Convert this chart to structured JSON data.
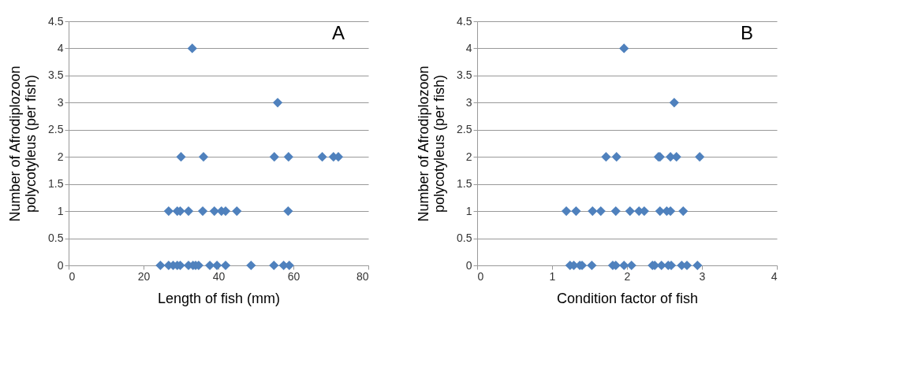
{
  "chart_data": [
    {
      "type": "scatter",
      "xlabel": "Length of fish (mm)",
      "ylabel": "Number of Afrodiplozoon polycotyleus (per fish)",
      "annotations": [
        "A"
      ],
      "marker": "diamond",
      "grid": "y",
      "xlim": [
        0,
        80
      ],
      "xticks": [
        0,
        20,
        40,
        60,
        80
      ],
      "ylim": [
        0,
        4.5
      ],
      "yticks": [
        0,
        0.5,
        1,
        1.5,
        2,
        2.5,
        3,
        3.5,
        4,
        4.5
      ],
      "series": [
        {
          "color": "#4f81bd",
          "x": [
            24.5,
            26.7,
            27.9,
            29.0,
            29.8,
            32.0,
            33.2,
            33.9,
            34.7,
            37.7,
            39.6,
            41.9,
            48.7,
            54.8,
            57.4,
            58.9,
            26.7,
            29.0,
            29.8,
            32.0,
            35.8,
            38.9,
            40.8,
            41.9,
            44.9,
            58.6,
            30.0,
            36.0,
            54.9,
            58.7,
            67.7,
            70.7,
            72.0,
            55.8,
            33.0
          ],
          "values": [
            0,
            0,
            0,
            0,
            0,
            0,
            0,
            0,
            0,
            0,
            0,
            0,
            0,
            0,
            0,
            0,
            1,
            1,
            1,
            1,
            1,
            1,
            1,
            1,
            1,
            1,
            2,
            2,
            2,
            2,
            2,
            2,
            2,
            3,
            4
          ]
        }
      ]
    },
    {
      "type": "scatter",
      "xlabel": "Condition factor of fish",
      "ylabel": "Number of Afrodiplozoon polycotyleus (per fish)",
      "annotations": [
        "B"
      ],
      "marker": "diamond",
      "grid": "y",
      "xlim": [
        0,
        4
      ],
      "xticks": [
        0,
        1,
        2,
        3,
        4
      ],
      "ylim": [
        0,
        4.5
      ],
      "yticks": [
        0,
        0.5,
        1,
        1.5,
        2,
        2.5,
        3,
        3.5,
        4,
        4.5
      ],
      "series": [
        {
          "color": "#4f81bd",
          "x": [
            1.24,
            1.29,
            1.37,
            1.4,
            1.53,
            1.81,
            1.85,
            1.96,
            2.06,
            2.34,
            2.37,
            2.46,
            2.55,
            2.59,
            2.73,
            2.8,
            2.94,
            1.19,
            1.32,
            1.54,
            1.65,
            1.85,
            2.04,
            2.16,
            2.23,
            2.44,
            2.53,
            2.58,
            2.75,
            1.72,
            1.86,
            2.42,
            2.44,
            2.58,
            2.66,
            2.97,
            2.63,
            1.96
          ],
          "values": [
            0,
            0,
            0,
            0,
            0,
            0,
            0,
            0,
            0,
            0,
            0,
            0,
            0,
            0,
            0,
            0,
            0,
            1,
            1,
            1,
            1,
            1,
            1,
            1,
            1,
            1,
            1,
            1,
            1,
            2,
            2,
            2,
            2,
            2,
            2,
            2,
            3,
            4
          ]
        }
      ]
    }
  ]
}
